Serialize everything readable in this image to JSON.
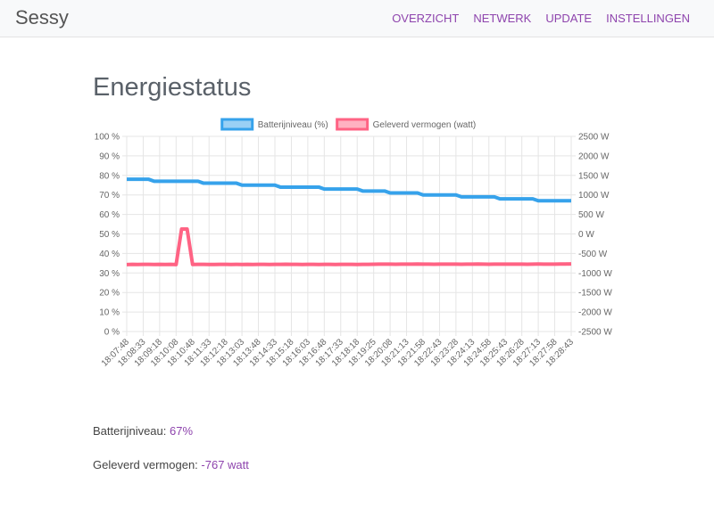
{
  "navbar": {
    "brand": "Sessy",
    "links": [
      "OVERZICHT",
      "NETWERK",
      "UPDATE",
      "INSTELLINGEN"
    ]
  },
  "heading": "Energiestatus",
  "chart_data": {
    "type": "line",
    "categories": [
      "18:07:48",
      null,
      null,
      "18:08:33",
      null,
      null,
      "18:09:18",
      null,
      null,
      "18:10:08",
      null,
      null,
      "18:10:48",
      null,
      null,
      "18:11:33",
      null,
      null,
      "18:12:18",
      null,
      null,
      "18:13:03",
      null,
      null,
      "18:13:48",
      null,
      null,
      "18:14:33",
      null,
      null,
      "18:15:18",
      null,
      null,
      "18:16:03",
      null,
      null,
      "18:16:48",
      null,
      null,
      "18:17:33",
      null,
      null,
      "18:18:18",
      null,
      null,
      "18:19:25",
      null,
      null,
      "18:20:08",
      null,
      null,
      "18:21:13",
      null,
      null,
      "18:21:58",
      null,
      null,
      "18:22:43",
      null,
      null,
      "18:23:28",
      null,
      null,
      "18:24:13",
      null,
      null,
      "18:24:58",
      null,
      null,
      "18:25:43",
      null,
      null,
      "18:26:28",
      null,
      null,
      "18:27:13",
      null,
      null,
      "18:27:58",
      null,
      null,
      "18:28:43"
    ],
    "series": [
      {
        "name": "Batterijniveau (%)",
        "color": "#36a2eb",
        "fill": "#9ad0f5",
        "axis": "y",
        "values": [
          78,
          78,
          78,
          78,
          78,
          77,
          77,
          77,
          77,
          77,
          77,
          77,
          77,
          77,
          76,
          76,
          76,
          76,
          76,
          76,
          76,
          75,
          75,
          75,
          75,
          75,
          75,
          75,
          74,
          74,
          74,
          74,
          74,
          74,
          74,
          74,
          73,
          73,
          73,
          73,
          73,
          73,
          73,
          72,
          72,
          72,
          72,
          72,
          71,
          71,
          71,
          71,
          71,
          71,
          70,
          70,
          70,
          70,
          70,
          70,
          70,
          69,
          69,
          69,
          69,
          69,
          69,
          69,
          68,
          68,
          68,
          68,
          68,
          68,
          68,
          67,
          67,
          67,
          67,
          67,
          67,
          67
        ]
      },
      {
        "name": "Geleverd vermogen (watt)",
        "color": "#ff6384",
        "fill": "#ffb1c1",
        "axis": "y2",
        "values": [
          -785,
          -780,
          -782,
          -778,
          -780,
          -783,
          -779,
          -781,
          -780,
          -784,
          126,
          126,
          -782,
          -780,
          -779,
          -781,
          -783,
          -780,
          -778,
          -781,
          -780,
          -782,
          -779,
          -781,
          -780,
          -778,
          -782,
          -780,
          -779,
          -776,
          -778,
          -780,
          -781,
          -779,
          -780,
          -782,
          -778,
          -780,
          -781,
          -779,
          -780,
          -778,
          -781,
          -779,
          -780,
          -775,
          -772,
          -774,
          -773,
          -775,
          -772,
          -774,
          -773,
          -771,
          -774,
          -772,
          -775,
          -773,
          -772,
          -774,
          -773,
          -775,
          -772,
          -774,
          -771,
          -773,
          -775,
          -772,
          -774,
          -773,
          -772,
          -774,
          -773,
          -775,
          -772,
          -771,
          -773,
          -774,
          -772,
          -770,
          -770,
          -767
        ]
      }
    ],
    "ylim": [
      0,
      100
    ],
    "yticks": [
      {
        "value": 0,
        "label": "0 %"
      },
      {
        "value": 10,
        "label": "10 %"
      },
      {
        "value": 20,
        "label": "20 %"
      },
      {
        "value": 30,
        "label": "30 %"
      },
      {
        "value": 40,
        "label": "40 %"
      },
      {
        "value": 50,
        "label": "50 %"
      },
      {
        "value": 60,
        "label": "60 %"
      },
      {
        "value": 70,
        "label": "70 %"
      },
      {
        "value": 80,
        "label": "80 %"
      },
      {
        "value": 90,
        "label": "90 %"
      },
      {
        "value": 100,
        "label": "100 %"
      }
    ],
    "y2lim": [
      -2500,
      2500
    ],
    "y2ticks": [
      {
        "value": -2500,
        "label": "-2500 W"
      },
      {
        "value": -2000,
        "label": "-2000 W"
      },
      {
        "value": -1500,
        "label": "-1500 W"
      },
      {
        "value": -1000,
        "label": "-1000 W"
      },
      {
        "value": -500,
        "label": "-500 W"
      },
      {
        "value": 0,
        "label": "0 W"
      },
      {
        "value": 500,
        "label": "500 W"
      },
      {
        "value": 1000,
        "label": "1000 W"
      },
      {
        "value": 1500,
        "label": "1500 W"
      },
      {
        "value": 2000,
        "label": "2000 W"
      },
      {
        "value": 2500,
        "label": "2500 W"
      }
    ],
    "grid": true,
    "legend": "top"
  },
  "status": [
    {
      "label": "Batterijniveau:",
      "value": "67%"
    },
    {
      "label": "Geleverd vermogen:",
      "value": "-767 watt"
    }
  ]
}
